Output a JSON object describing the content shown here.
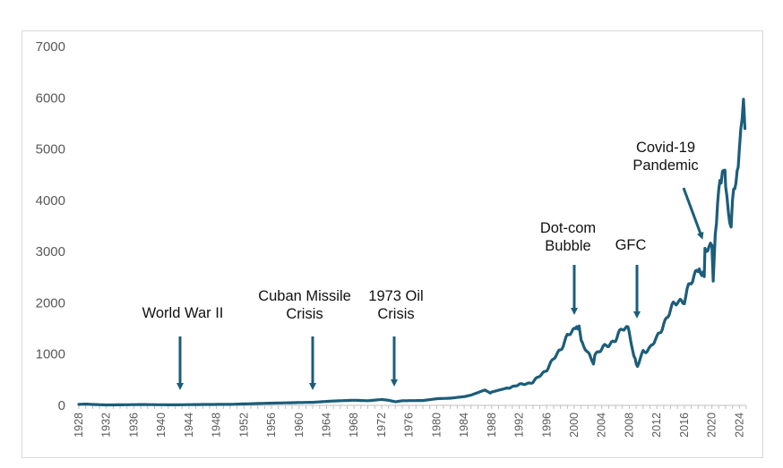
{
  "chart_data": {
    "type": "line",
    "title": "",
    "xlabel": "",
    "ylabel": "",
    "xlim": [
      1928,
      2025
    ],
    "ylim": [
      0,
      7000
    ],
    "grid": false,
    "legend": "none",
    "line_color": "#1c5d7a",
    "arrow_color": "#1c5d7a",
    "y_ticks": [
      "0",
      "1000",
      "2000",
      "3000",
      "4000",
      "5000",
      "6000",
      "7000"
    ],
    "x_ticks": [
      "1928",
      "1932",
      "1936",
      "1940",
      "1944",
      "1948",
      "1952",
      "1956",
      "1960",
      "1964",
      "1968",
      "1972",
      "1976",
      "1980",
      "1984",
      "1988",
      "1992",
      "1996",
      "2000",
      "2004",
      "2008",
      "2012",
      "2016",
      "2020",
      "2024"
    ],
    "series": [
      {
        "x": [
          1928,
          1929,
          1930,
          1932,
          1935,
          1937,
          1940,
          1942,
          1945,
          1950,
          1955,
          1960,
          1962,
          1965,
          1968,
          1970,
          1972,
          1973,
          1974,
          1975,
          1978,
          1980,
          1982,
          1984,
          1985,
          1987,
          1987.8,
          1988,
          1990,
          1992,
          1994,
          1995,
          1996,
          1997,
          1998,
          1999,
          2000,
          2000.7,
          2001,
          2002,
          2002.8,
          2003,
          2004,
          2005,
          2006,
          2007,
          2007.8,
          2008.5,
          2009.2,
          2010,
          2011,
          2012,
          2013,
          2014,
          2015,
          2016,
          2017,
          2018,
          2018.9,
          2019,
          2020,
          2020.2,
          2020.5,
          2021,
          2021.9,
          2022,
          2022.8,
          2023,
          2023.5,
          2024,
          2024.4,
          2024.6,
          2024.8
        ],
        "y": [
          20,
          25,
          18,
          8,
          12,
          16,
          12,
          10,
          16,
          20,
          40,
          55,
          60,
          85,
          100,
          90,
          115,
          100,
          70,
          90,
          95,
          130,
          140,
          170,
          200,
          300,
          240,
          260,
          330,
          400,
          450,
          580,
          700,
          900,
          1100,
          1350,
          1460,
          1500,
          1250,
          1000,
          840,
          1000,
          1100,
          1180,
          1300,
          1480,
          1520,
          1050,
          760,
          1050,
          1120,
          1300,
          1600,
          1850,
          2050,
          2050,
          2400,
          2700,
          2600,
          3000,
          3100,
          2500,
          3200,
          4100,
          4750,
          4100,
          3600,
          4000,
          4300,
          4900,
          5400,
          6000,
          5400
        ]
      }
    ],
    "annotations": [
      {
        "lines": [
          "World War II"
        ],
        "x": 1942.5,
        "y": 0
      },
      {
        "lines": [
          "Cuban Missile",
          "Crisis"
        ],
        "x": 1962,
        "y": 0
      },
      {
        "lines": [
          "1973 Oil",
          "Crisis"
        ],
        "x": 1974,
        "y": 0
      },
      {
        "lines": [
          "Dot-com",
          "Bubble"
        ],
        "x": 2000.5,
        "y": 1500
      },
      {
        "lines": [
          "GFC"
        ],
        "x": 2009,
        "y": 1000
      },
      {
        "lines": [
          "Covid-19",
          "Pandemic"
        ],
        "x": 2019.5,
        "y": 3300
      }
    ]
  }
}
